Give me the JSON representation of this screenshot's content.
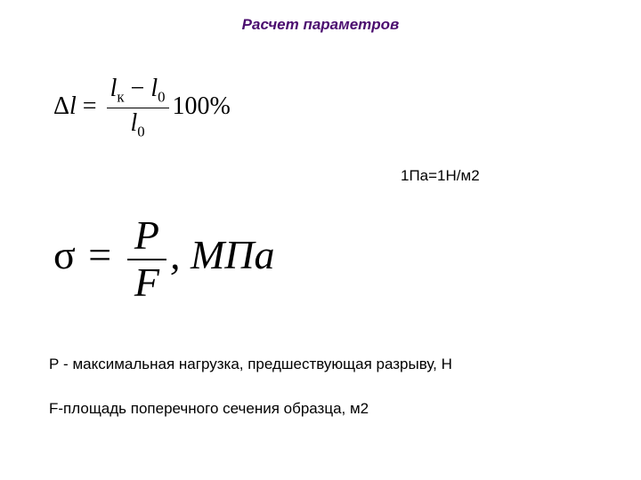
{
  "title": "Расчет параметров",
  "formula1": {
    "lhs_delta": "Δ",
    "lhs_var": "l",
    "eq": " = ",
    "num_l": "l",
    "num_sub1": "к",
    "num_minus": " − ",
    "num_l2": "l",
    "num_sub2": "0",
    "den_l": "l",
    "den_sub": "0",
    "tail": "100%"
  },
  "unit_note": "1Па=1Н/м2",
  "formula2": {
    "sigma": "σ",
    "eq": "  =  ",
    "num": "P",
    "den": "F",
    "tail": ", МПа"
  },
  "def_p": "Р - максимальная нагрузка, предшествующая разрыву, Н",
  "def_f": "F-площадь поперечного сечения образца, м2"
}
